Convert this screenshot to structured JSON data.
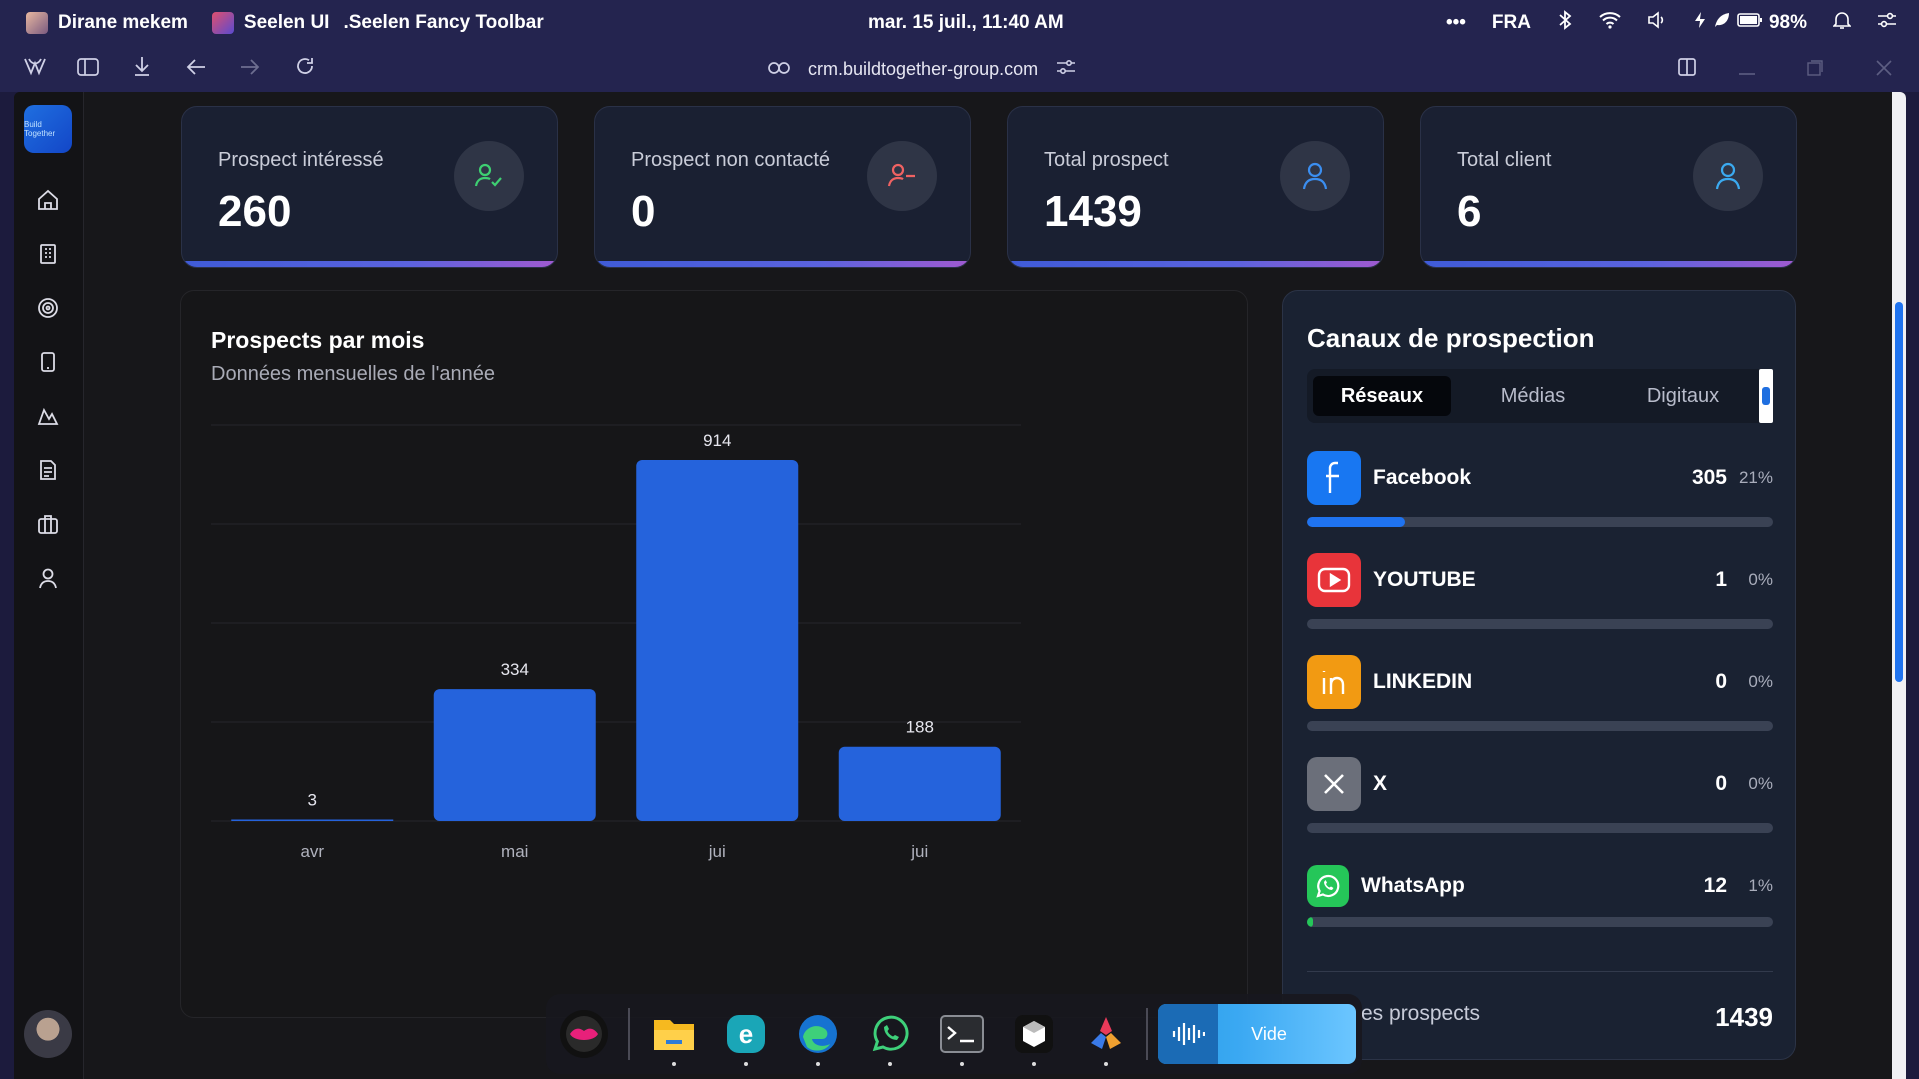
{
  "osbar": {
    "user": "Dirane mekem",
    "app1": "Seelen UI",
    "app2": ".Seelen Fancy Toolbar",
    "datetime": "mar. 15 juil., 11:40 AM",
    "more": "•••",
    "lang": "FRA",
    "battery": "98%"
  },
  "browser": {
    "url": "crm.buildtogether-group.com"
  },
  "sidebar": {
    "logo_text": "Build Together",
    "items": [
      "home-icon",
      "building-icon",
      "target-icon",
      "phone-icon",
      "chart-icon",
      "document-icon",
      "briefcase-icon",
      "user-icon"
    ]
  },
  "stats": [
    {
      "label": "Prospect intéressé",
      "value": "260",
      "icon": "user-check-icon",
      "color": "#3ecf72"
    },
    {
      "label": "Prospect non contacté",
      "value": "0",
      "icon": "user-minus-icon",
      "color": "#f06262"
    },
    {
      "label": "Total prospect",
      "value": "1439",
      "icon": "user-icon",
      "color": "#3b8ef0"
    },
    {
      "label": "Total client",
      "value": "6",
      "icon": "user-icon",
      "color": "#3baaf0"
    }
  ],
  "chart": {
    "title": "Prospects par mois",
    "subtitle": "Données mensuelles de l'année"
  },
  "chart_data": {
    "type": "bar",
    "categories": [
      "avr",
      "mai",
      "jui",
      "jui"
    ],
    "values": [
      3,
      334,
      914,
      188
    ],
    "title": "Prospects par mois",
    "subtitle": "Données mensuelles de l'année",
    "ylim": [
      0,
      1000
    ],
    "grid": true,
    "color": "#2563dc"
  },
  "channels": {
    "title": "Canaux de prospection",
    "tabs": [
      "Réseaux",
      "Médias",
      "Digitaux"
    ],
    "active_tab": "Réseaux",
    "items": [
      {
        "name": "Facebook",
        "count": "305",
        "pct": "21%",
        "fraction": 0.21,
        "color": "#1877f2",
        "icon": "facebook-icon"
      },
      {
        "name": "YOUTUBE",
        "count": "1",
        "pct": "0%",
        "fraction": 0.0,
        "color": "#e8343a",
        "icon": "youtube-icon"
      },
      {
        "name": "LINKEDIN",
        "count": "0",
        "pct": "0%",
        "fraction": 0.0,
        "color": "#f29a12",
        "icon": "linkedin-icon"
      },
      {
        "name": "X",
        "count": "0",
        "pct": "0%",
        "fraction": 0.0,
        "color": "#6b6f7a",
        "icon": "x-icon"
      },
      {
        "name": "WhatsApp",
        "count": "12",
        "pct": "1%",
        "fraction": 0.01,
        "color": "#25c659",
        "icon": "whatsapp-icon"
      }
    ],
    "total_label": "es prospects",
    "total_value": "1439"
  },
  "dock": {
    "apps": [
      "lips-app-icon",
      "file-explorer-icon",
      "edge-beta-icon",
      "edge-icon",
      "whatsapp-icon",
      "terminal-icon",
      "box-app-icon",
      "multicolor-app-icon"
    ],
    "media_label": "Vide"
  }
}
